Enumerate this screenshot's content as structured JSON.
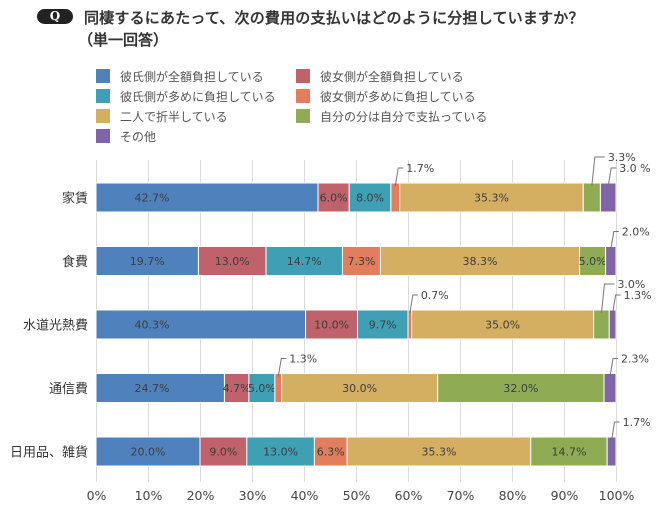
{
  "header": {
    "badge": "Q",
    "question": "同棲するにあたって、次の費用の支払いはどのように分担していますか？",
    "note": "（単一回答）"
  },
  "chart_data": {
    "type": "bar",
    "orientation": "horizontal",
    "stacked": true,
    "title": "同棲するにあたって、次の費用の支払いはどのように分担していますか？（単一回答）",
    "xlabel": "",
    "ylabel": "",
    "categories": [
      "家賃",
      "食費",
      "水道光熱費",
      "通信費",
      "日用品、雑貨"
    ],
    "series": [
      {
        "name": "彼氏側が全額負担している",
        "color": "#4F81BD",
        "values": [
          42.7,
          19.7,
          40.3,
          24.7,
          20.0
        ],
        "labels": [
          "42.7%",
          "19.7%",
          "40.3%",
          "24.7%",
          "20.0%"
        ]
      },
      {
        "name": "彼女側が全額負担している",
        "color": "#C0626B",
        "values": [
          6.0,
          13.0,
          10.0,
          4.7,
          9.0
        ],
        "labels": [
          "6.0%",
          "13.0%",
          "10.0%",
          "4.7%",
          "9.0%"
        ]
      },
      {
        "name": "彼氏側が多めに負担している",
        "color": "#3FA0B5",
        "values": [
          8.0,
          14.7,
          9.7,
          5.0,
          13.0
        ],
        "labels": [
          "8.0%",
          "14.7%",
          "9.7%",
          "5.0%",
          "13.0%"
        ]
      },
      {
        "name": "彼女側が多めに負担している",
        "color": "#E27D5E",
        "values": [
          1.7,
          7.3,
          0.7,
          1.3,
          6.3
        ],
        "labels": [
          "1.7%",
          "7.3%",
          "0.7%",
          "1.3%",
          "6.3%"
        ]
      },
      {
        "name": "二人で折半している",
        "color": "#D4AF62",
        "values": [
          35.3,
          38.3,
          35.0,
          30.0,
          35.3
        ],
        "labels": [
          "35.3%",
          "38.3%",
          "35.0%",
          "30.0%",
          "35.3%"
        ]
      },
      {
        "name": "自分の分は自分で支払っている",
        "color": "#8FAC55",
        "values": [
          3.3,
          5.0,
          3.0,
          32.0,
          14.7
        ],
        "labels": [
          "3.3%",
          "5.0%",
          "3.0%",
          "32.0%",
          "14.7%"
        ]
      },
      {
        "name": "その他",
        "color": "#8064A8",
        "values": [
          3.0,
          2.0,
          1.3,
          2.3,
          1.7
        ],
        "labels": [
          "3.0 %",
          "2.0%",
          "1.3%",
          "2.3%",
          "1.7%"
        ]
      }
    ],
    "xlim": [
      0,
      100
    ],
    "xticks": [
      0,
      10,
      20,
      30,
      40,
      50,
      60,
      70,
      80,
      90,
      100
    ],
    "xtick_labels": [
      "0%",
      "10%",
      "20%",
      "30%",
      "40%",
      "50%",
      "60%",
      "70%",
      "80%",
      "90%",
      "100%"
    ],
    "grid": true,
    "legend_position": "top-left"
  }
}
